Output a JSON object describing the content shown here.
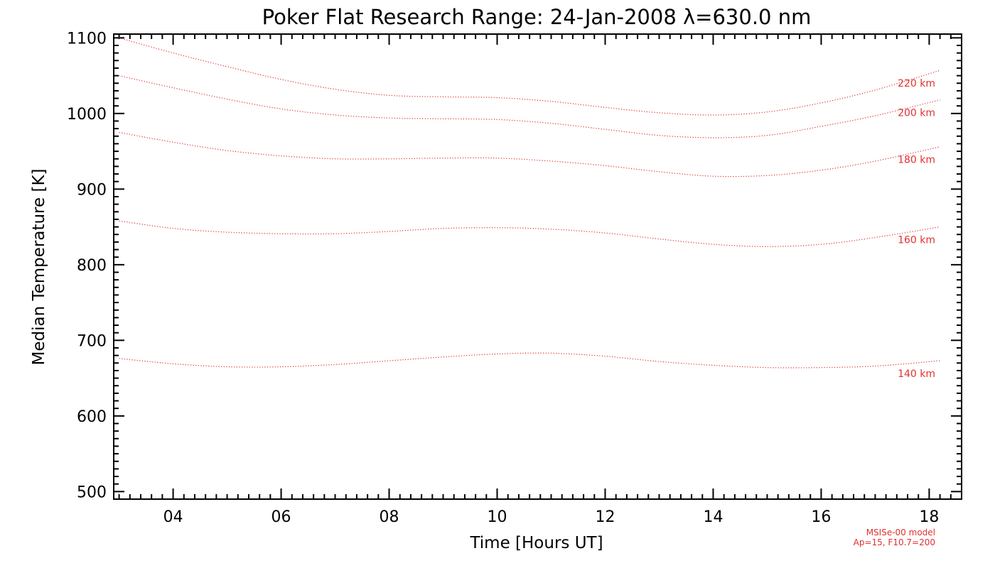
{
  "chart_data": {
    "type": "line",
    "title": "Poker Flat Research Range: 24-Jan-2008 λ=630.0 nm",
    "xlabel": "Time [Hours UT]",
    "ylabel": "Median Temperature [K]",
    "xlim": [
      2.9,
      18.6
    ],
    "ylim": [
      490,
      1105
    ],
    "xticks": [
      4,
      6,
      8,
      10,
      12,
      14,
      16,
      18
    ],
    "xtick_labels": [
      "04",
      "06",
      "08",
      "10",
      "12",
      "14",
      "16",
      "18"
    ],
    "yticks": [
      500,
      600,
      700,
      800,
      900,
      1000,
      1100
    ],
    "ytick_labels": [
      "500",
      "600",
      "700",
      "800",
      "900",
      "1000",
      "1100"
    ],
    "line_style": "dotted",
    "series_color": "#e03030",
    "grid": false,
    "series": [
      {
        "name": "220 km",
        "x": [
          3,
          4,
          5,
          6,
          7,
          8,
          9,
          10,
          11,
          12,
          13,
          14,
          15,
          16,
          17,
          18.2
        ],
        "values": [
          1100,
          1080,
          1062,
          1045,
          1032,
          1024,
          1022,
          1021,
          1016,
          1008,
          1001,
          998,
          1002,
          1014,
          1031,
          1057
        ]
      },
      {
        "name": "200 km",
        "x": [
          3,
          4,
          5,
          6,
          7,
          8,
          9,
          10,
          11,
          12,
          13,
          14,
          15,
          16,
          17,
          18.2
        ],
        "values": [
          1050,
          1034,
          1019,
          1006,
          998,
          994,
          993,
          992,
          987,
          979,
          971,
          968,
          971,
          983,
          997,
          1018
        ]
      },
      {
        "name": "180 km",
        "x": [
          3,
          4,
          5,
          6,
          7,
          8,
          9,
          10,
          11,
          12,
          13,
          14,
          15,
          16,
          17,
          18.2
        ],
        "values": [
          975,
          962,
          951,
          944,
          940,
          940,
          941,
          941,
          937,
          931,
          923,
          917,
          918,
          925,
          937,
          956
        ]
      },
      {
        "name": "160 km",
        "x": [
          3,
          4,
          5,
          6,
          7,
          8,
          9,
          10,
          11,
          12,
          13,
          14,
          15,
          16,
          17,
          18.2
        ],
        "values": [
          858,
          848,
          843,
          841,
          841,
          844,
          848,
          849,
          847,
          842,
          834,
          827,
          824,
          827,
          836,
          850
        ]
      },
      {
        "name": "140 km",
        "x": [
          3,
          4,
          5,
          6,
          7,
          8,
          9,
          10,
          11,
          12,
          13,
          14,
          15,
          16,
          17,
          18.2
        ],
        "values": [
          676,
          669,
          665,
          665,
          668,
          673,
          678,
          682,
          683,
          679,
          672,
          667,
          664,
          664,
          666,
          673
        ]
      }
    ]
  },
  "annotation": {
    "line1": "MSISe-00 model",
    "line2": "Ap=15, F10.7=200"
  }
}
